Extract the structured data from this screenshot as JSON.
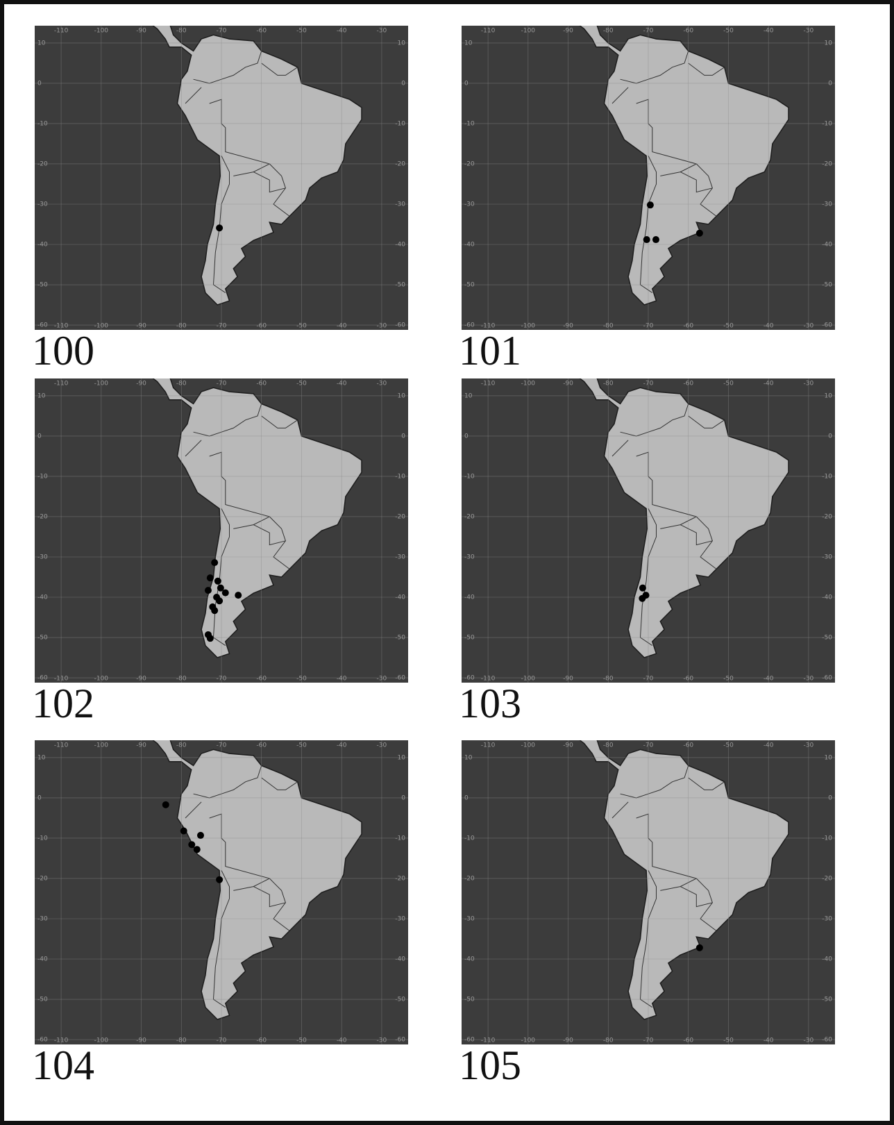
{
  "axes": {
    "xlim": [
      -116.6,
      -23.4
    ],
    "ylim": [
      14.3,
      -61.2
    ],
    "xticks": [
      -110,
      -100,
      -90,
      -80,
      -70,
      -60,
      -50,
      -40,
      -30
    ],
    "yticks": [
      10,
      0,
      -10,
      -20,
      -30,
      -40,
      -50,
      -60
    ]
  },
  "panels": [
    {
      "label": "100",
      "points": [
        [
          -70.5,
          -35.9
        ]
      ]
    },
    {
      "label": "101",
      "points": [
        [
          -69.5,
          -30.2
        ],
        [
          -70.4,
          -38.8
        ],
        [
          -68.1,
          -38.8
        ],
        [
          -57.2,
          -37.2
        ]
      ]
    },
    {
      "label": "102",
      "points": [
        [
          -71.7,
          -31.4
        ],
        [
          -72.8,
          -35.2
        ],
        [
          -70.9,
          -36
        ],
        [
          -73.3,
          -38.3
        ],
        [
          -70.2,
          -37.7
        ],
        [
          -71.2,
          -40
        ],
        [
          -69,
          -38.9
        ],
        [
          -65.8,
          -39.5
        ],
        [
          -72.2,
          -42.4
        ],
        [
          -71.7,
          -43.3
        ],
        [
          -73.3,
          -49.3
        ],
        [
          -72.8,
          -50.2
        ],
        [
          -70.5,
          -40.9
        ]
      ]
    },
    {
      "label": "103",
      "points": [
        [
          -71.4,
          -37.7
        ],
        [
          -70.6,
          -39.5
        ],
        [
          -71.5,
          -40.3
        ]
      ]
    },
    {
      "label": "104",
      "points": [
        [
          -83.9,
          -1.7
        ],
        [
          -79.4,
          -8.2
        ],
        [
          -75.2,
          -9.3
        ],
        [
          -77.4,
          -11.6
        ],
        [
          -76.1,
          -12.8
        ],
        [
          -70.5,
          -20.3
        ]
      ]
    },
    {
      "label": "105",
      "points": [
        [
          -57.2,
          -37.2
        ]
      ]
    }
  ]
}
